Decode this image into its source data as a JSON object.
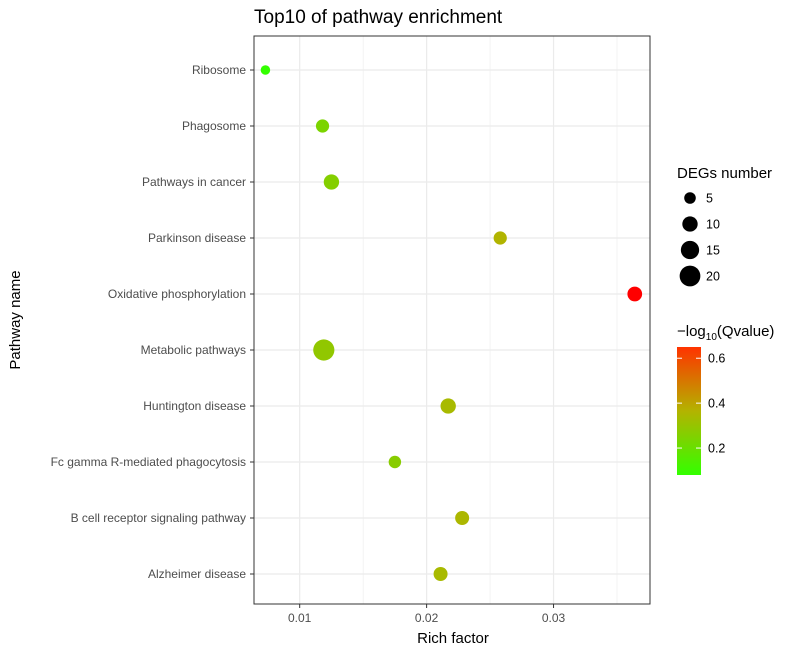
{
  "chart_data": {
    "type": "scatter",
    "title": "Top10 of pathway enrichment",
    "xlabel": "Rich factor",
    "ylabel": "Pathway name",
    "xlim": [
      0.0064,
      0.0376
    ],
    "x_ticks": [
      0.01,
      0.02,
      0.03
    ],
    "x_tick_labels": [
      "0.01",
      "0.02",
      "0.03"
    ],
    "grid": true,
    "categories": [
      "Ribosome",
      "Phagosome",
      "Pathways in cancer",
      "Parkinson disease",
      "Oxidative phosphorylation",
      "Metabolic pathways",
      "Huntington disease",
      "Fc gamma R-mediated phagocytosis",
      "B cell receptor signaling pathway",
      "Alzheimer disease"
    ],
    "points": [
      {
        "pathway": "Ribosome",
        "rich_factor": 0.0073,
        "deg_number": 3,
        "qvalue_neglog10": 0.08
      },
      {
        "pathway": "Phagosome",
        "rich_factor": 0.0118,
        "deg_number": 7,
        "qvalue_neglog10": 0.24
      },
      {
        "pathway": "Pathways in cancer",
        "rich_factor": 0.0125,
        "deg_number": 10,
        "qvalue_neglog10": 0.26
      },
      {
        "pathway": "Parkinson disease",
        "rich_factor": 0.0258,
        "deg_number": 7,
        "qvalue_neglog10": 0.36
      },
      {
        "pathway": "Oxidative phosphorylation",
        "rich_factor": 0.0364,
        "deg_number": 9,
        "qvalue_neglog10": 0.65
      },
      {
        "pathway": "Metabolic pathways",
        "rich_factor": 0.0119,
        "deg_number": 21,
        "qvalue_neglog10": 0.29
      },
      {
        "pathway": "Huntington disease",
        "rich_factor": 0.0217,
        "deg_number": 10,
        "qvalue_neglog10": 0.34
      },
      {
        "pathway": "Fc gamma R-mediated phagocytosis",
        "rich_factor": 0.0175,
        "deg_number": 6,
        "qvalue_neglog10": 0.27
      },
      {
        "pathway": "B cell receptor signaling pathway",
        "rich_factor": 0.0228,
        "deg_number": 8,
        "qvalue_neglog10": 0.35
      },
      {
        "pathway": "Alzheimer disease",
        "rich_factor": 0.0211,
        "deg_number": 8,
        "qvalue_neglog10": 0.34
      }
    ],
    "size_legend": {
      "title": "DEGs number",
      "values": [
        5,
        10,
        15,
        20
      ],
      "labels": [
        "5",
        "10",
        "15",
        "20"
      ]
    },
    "color_legend": {
      "title_prefix": "−log",
      "title_sub": "10",
      "title_suffix": "(Qvalue)",
      "ticks": [
        0.2,
        0.4,
        0.6
      ],
      "tick_labels": [
        "0.2",
        "0.4",
        "0.6"
      ],
      "range": [
        0.08,
        0.65
      ],
      "low_color": "#33ff00",
      "mid_color": "#b3b300",
      "high_color": "#ff3300"
    },
    "point_color_high": "#ff0000",
    "grid_color": "#ebebeb",
    "panel_border_color": "#333333"
  }
}
